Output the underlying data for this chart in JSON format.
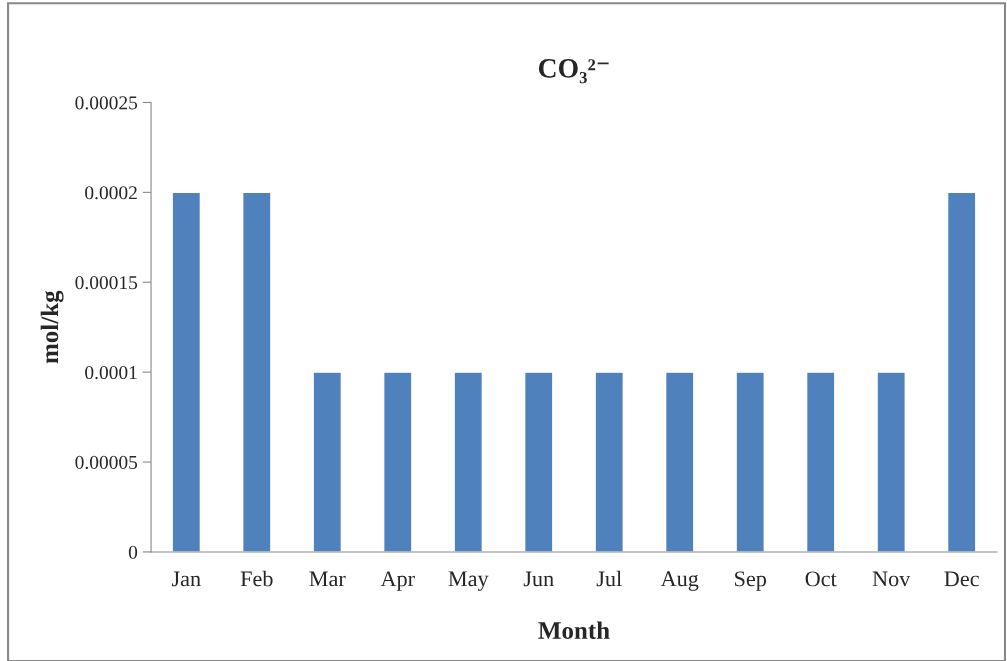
{
  "chart_data": {
    "type": "bar",
    "title": "CO₃²⁻",
    "xlabel": "Month",
    "ylabel": "mol/kg",
    "categories": [
      "Jan",
      "Feb",
      "Mar",
      "Apr",
      "May",
      "Jun",
      "Jul",
      "Aug",
      "Sep",
      "Oct",
      "Nov",
      "Dec"
    ],
    "values": [
      0.0002,
      0.0002,
      0.0001,
      0.0001,
      0.0001,
      0.0001,
      0.0001,
      0.0001,
      0.0001,
      0.0001,
      0.0001,
      0.0002
    ],
    "color": "#4f81bd",
    "ylim": [
      0,
      0.00025
    ],
    "yticks": [
      0,
      {
        "value": 5e-05,
        "label": "0.00005"
      },
      {
        "value": 0.0001,
        "label": "0.0001"
      },
      {
        "value": 0.00015,
        "label": "0.00015"
      },
      {
        "value": 0.0002,
        "label": "0.0002"
      },
      {
        "value": 0.00025,
        "label": "0.00025"
      }
    ],
    "grid": false
  }
}
